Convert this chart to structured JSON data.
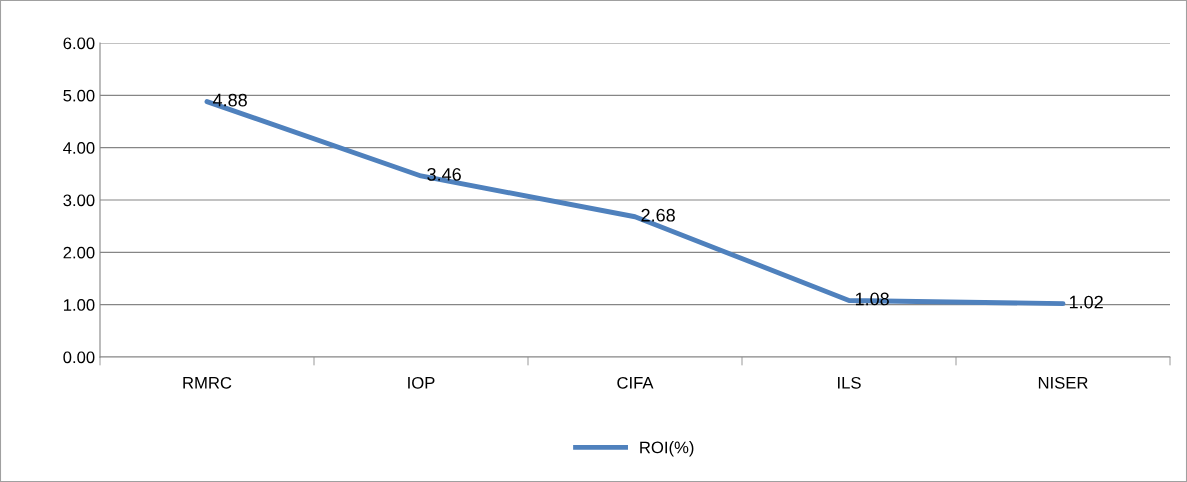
{
  "chart_data": {
    "type": "line",
    "categories": [
      "RMRC",
      "IOP",
      "CIFA",
      "ILS",
      "NISER"
    ],
    "series": [
      {
        "name": "ROI(%)",
        "color": "#4f81bd",
        "values": [
          4.88,
          3.46,
          2.68,
          1.08,
          1.02
        ]
      }
    ],
    "ylim": [
      0,
      6
    ],
    "yticks": [
      {
        "value": 0,
        "label": "0.00"
      },
      {
        "value": 1,
        "label": "1.00"
      },
      {
        "value": 2,
        "label": "2.00"
      },
      {
        "value": 3,
        "label": "3.00"
      },
      {
        "value": 4,
        "label": "4.00"
      },
      {
        "value": 5,
        "label": "5.00"
      },
      {
        "value": 6,
        "label": "6.00"
      }
    ],
    "grid": "y",
    "legend": "bottom",
    "marker": "none",
    "line_style": "solid",
    "data_labels": true
  }
}
